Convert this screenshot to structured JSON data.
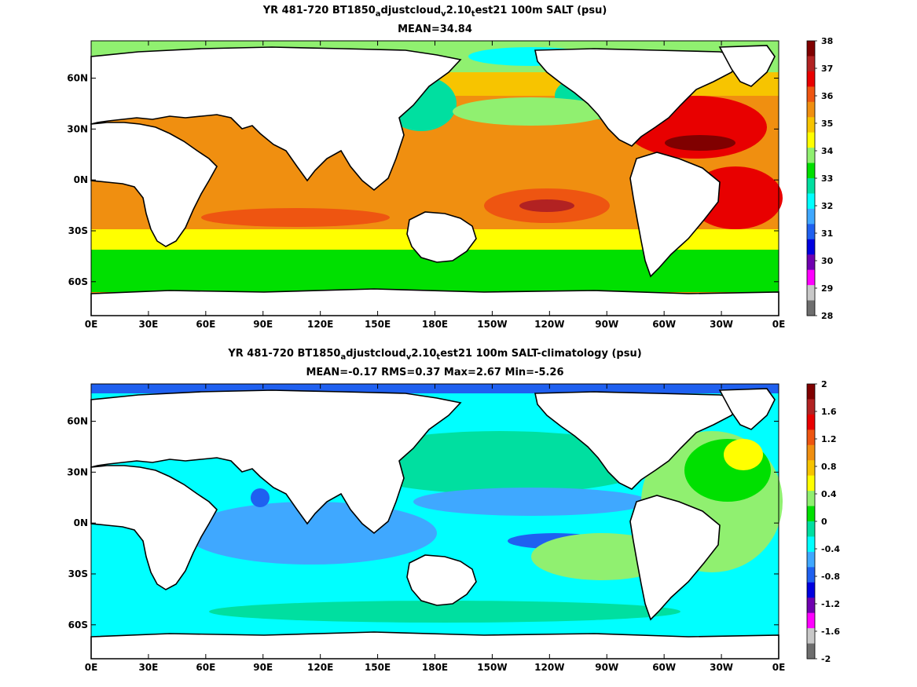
{
  "panels": [
    {
      "title_parts": [
        "YR 481-720 BT1850",
        "a",
        "djustcloud",
        "v",
        "2.10",
        "t",
        "est21 100m SALT (psu)"
      ],
      "subtitle": "MEAN=34.84",
      "colorbar": {
        "ticks": [
          "38",
          "37",
          "36",
          "35",
          "34",
          "33",
          "32",
          "31",
          "30",
          "29",
          "28"
        ],
        "colors": [
          "#800000",
          "#b22222",
          "#e80000",
          "#ee5511",
          "#f08f10",
          "#f7c400",
          "#ffff00",
          "#90f070",
          "#00e000",
          "#00dfa0",
          "#00ffff",
          "#3fa8ff",
          "#1f60f0",
          "#0000e0",
          "#7000b0",
          "#ff00ff",
          "#c8c8c8",
          "#6e6e6e"
        ]
      }
    },
    {
      "title_parts": [
        "YR 481-720 BT1850",
        "a",
        "djustcloud",
        "v",
        "2.10",
        "t",
        "est21 100m SALT-climatology (psu)"
      ],
      "subtitle": "MEAN=-0.17   RMS=0.37   Max=2.67   Min=-5.26",
      "colorbar": {
        "ticks": [
          "2",
          "1.6",
          "1.2",
          "0.8",
          "0.4",
          "0",
          "-0.4",
          "-0.8",
          "-1.2",
          "-1.6",
          "-2"
        ],
        "colors": [
          "#800000",
          "#b22222",
          "#e80000",
          "#ee5511",
          "#f08f10",
          "#f7c400",
          "#ffff00",
          "#90f070",
          "#00e000",
          "#00dfa0",
          "#00ffff",
          "#3fa8ff",
          "#1f60f0",
          "#0000e0",
          "#7000b0",
          "#ff00ff",
          "#c8c8c8",
          "#6e6e6e"
        ]
      }
    }
  ],
  "axes": {
    "x_ticks": [
      "0E",
      "30E",
      "60E",
      "90E",
      "120E",
      "150E",
      "180E",
      "150W",
      "120W",
      "90W",
      "60W",
      "30W",
      "0E"
    ],
    "y_ticks": [
      "60N",
      "30N",
      "0N",
      "30S",
      "60S"
    ]
  },
  "colors": {
    "land": "#ffffff",
    "coast": "#000000"
  }
}
